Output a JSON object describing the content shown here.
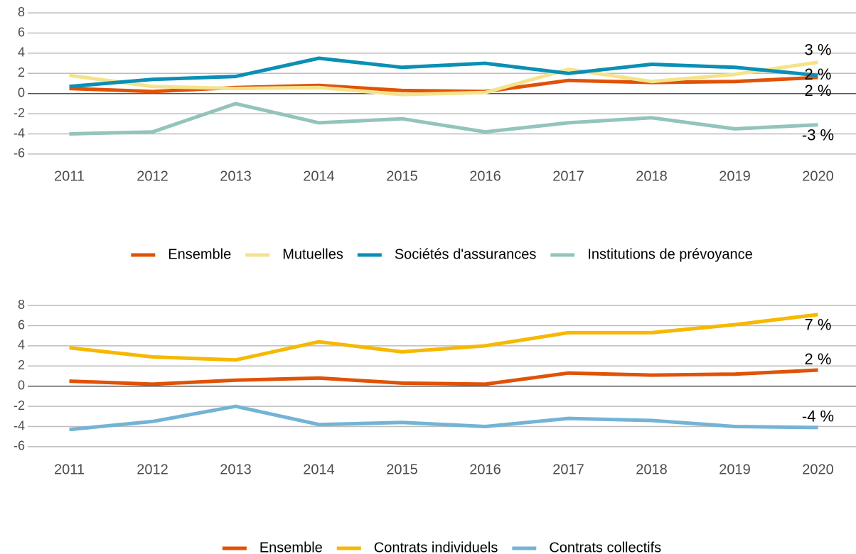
{
  "chart_data": [
    {
      "type": "line",
      "x": [
        2011,
        2012,
        2013,
        2014,
        2015,
        2016,
        2017,
        2018,
        2019,
        2020
      ],
      "xlim": [
        2010.5,
        2020.5
      ],
      "xticks": [
        2011,
        2012,
        2013,
        2014,
        2015,
        2016,
        2017,
        2018,
        2019,
        2020
      ],
      "ylim": [
        -6.5,
        8.5
      ],
      "yticks": [
        8,
        6,
        4,
        2,
        0,
        -2,
        -4,
        -6
      ],
      "grid": true,
      "legend": "bottom",
      "series": [
        {
          "name": "Ensemble",
          "color": "#e05206",
          "values": [
            0.5,
            0.2,
            0.6,
            0.8,
            0.3,
            0.2,
            1.3,
            1.1,
            1.2,
            1.6
          ],
          "end_label": "2 %"
        },
        {
          "name": "Mutuelles",
          "color": "#f5e38c",
          "values": [
            1.8,
            0.7,
            0.5,
            0.6,
            -0.1,
            0.1,
            2.4,
            1.2,
            1.9,
            3.1
          ],
          "end_label": "3 %"
        },
        {
          "name": "Sociétés d'assurances",
          "color": "#0a8fb5",
          "values": [
            0.7,
            1.4,
            1.7,
            3.5,
            2.6,
            3.0,
            2.0,
            2.9,
            2.6,
            1.8
          ],
          "end_label": "2 %"
        },
        {
          "name": "Institutions de prévoyance",
          "color": "#93c4bb",
          "values": [
            -4.0,
            -3.8,
            -1.0,
            -2.9,
            -2.5,
            -3.8,
            -2.9,
            -2.4,
            -3.5,
            -3.1
          ],
          "end_label": "-3 %"
        }
      ]
    },
    {
      "type": "line",
      "x": [
        2011,
        2012,
        2013,
        2014,
        2015,
        2016,
        2017,
        2018,
        2019,
        2020
      ],
      "xlim": [
        2010.5,
        2020.5
      ],
      "xticks": [
        2011,
        2012,
        2013,
        2014,
        2015,
        2016,
        2017,
        2018,
        2019,
        2020
      ],
      "ylim": [
        -6.5,
        8.5
      ],
      "yticks": [
        8,
        6,
        4,
        2,
        0,
        -2,
        -4,
        -6
      ],
      "grid": true,
      "legend": "bottom",
      "series": [
        {
          "name": "Ensemble",
          "color": "#e05206",
          "values": [
            0.5,
            0.2,
            0.6,
            0.8,
            0.3,
            0.2,
            1.3,
            1.1,
            1.2,
            1.6
          ],
          "end_label": "2 %"
        },
        {
          "name": "Contrats individuels",
          "color": "#f6b800",
          "values": [
            3.8,
            2.9,
            2.6,
            4.4,
            3.4,
            4.0,
            5.3,
            5.3,
            6.1,
            7.1
          ],
          "end_label": "7 %"
        },
        {
          "name": "Contrats collectifs",
          "color": "#73b4d6",
          "values": [
            -4.3,
            -3.5,
            -2.0,
            -3.8,
            -3.6,
            -4.0,
            -3.2,
            -3.4,
            -4.0,
            -4.1
          ],
          "end_label": "-4 %"
        }
      ]
    }
  ]
}
